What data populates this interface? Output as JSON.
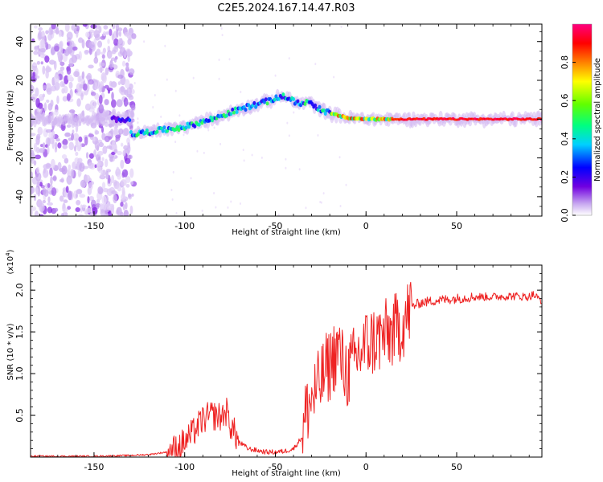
{
  "page": {
    "title": "C2E5.2024.167.14.47.R03"
  },
  "chart_data": [
    {
      "type": "heatmap",
      "title": "C2E5.2024.167.14.47.R03",
      "xlabel": "Height of straight line (km)",
      "ylabel": "Frequency (Hz)",
      "xlim": [
        -185,
        97
      ],
      "ylim": [
        -50,
        49
      ],
      "xticks": [
        -150,
        -100,
        -50,
        0,
        50
      ],
      "yticks": [
        -40,
        -20,
        0,
        20,
        40
      ],
      "colorbar": {
        "label": "Normalized spectral amplitude",
        "range": [
          0,
          1
        ],
        "ticks": [
          0.0,
          0.2,
          0.4,
          0.6,
          0.8
        ],
        "colors": [
          "#ffffff",
          "#c8a8f0",
          "#7000e0",
          "#0000ff",
          "#00d0ff",
          "#00ff80",
          "#60ff00",
          "#ffff00",
          "#ff8000",
          "#ff0000",
          "#ff0080"
        ]
      },
      "ridge": {
        "x": [
          -130,
          -115,
          -100,
          -85,
          -70,
          -55,
          -45,
          -38,
          -32,
          -25,
          -20,
          -10,
          0,
          20,
          50,
          95
        ],
        "y": [
          -8,
          -6,
          -4,
          0,
          5,
          9,
          12,
          8,
          9,
          5,
          3,
          0.5,
          0,
          0,
          0,
          0
        ]
      },
      "noise_region": {
        "x": [
          -185,
          -128
        ],
        "y": [
          -50,
          49
        ]
      }
    },
    {
      "type": "line",
      "xlabel": "Height of straight line (km)",
      "ylabel": "SNR (10 * v/v)",
      "yunit": "(x10",
      "yunit_exp": "4",
      "yunit_close": ")",
      "xlim": [
        -185,
        97
      ],
      "ylim": [
        0,
        2.3
      ],
      "xticks": [
        -150,
        -100,
        -50,
        0,
        50
      ],
      "yticks": [
        0.5,
        1.0,
        1.5,
        2.0
      ],
      "series": [
        {
          "color": "#ee2222",
          "x": [
            -185,
            -150,
            -130,
            -120,
            -110,
            -105,
            -100,
            -95,
            -90,
            -85,
            -80,
            -77,
            -75,
            -70,
            -65,
            -60,
            -55,
            -50,
            -45,
            -40,
            -35,
            -33,
            -30,
            -27,
            -25,
            -22,
            -20,
            -18,
            -15,
            -13,
            -10,
            -5,
            0,
            5,
            10,
            15,
            20,
            23,
            25,
            30,
            40,
            50,
            60,
            70,
            80,
            90,
            92,
            95,
            97
          ],
          "y": [
            0.01,
            0.01,
            0.02,
            0.03,
            0.06,
            0.1,
            0.18,
            0.3,
            0.45,
            0.5,
            0.48,
            0.55,
            0.4,
            0.18,
            0.1,
            0.08,
            0.06,
            0.06,
            0.07,
            0.1,
            0.25,
            0.55,
            0.7,
            0.8,
            0.9,
            1.05,
            1.1,
            1.2,
            1.3,
            1.1,
            1.0,
            1.2,
            1.35,
            1.4,
            1.45,
            1.5,
            1.6,
            1.7,
            1.8,
            1.85,
            1.88,
            1.9,
            1.92,
            1.92,
            1.93,
            1.92,
            1.95,
            1.9,
            1.88
          ]
        }
      ]
    }
  ]
}
